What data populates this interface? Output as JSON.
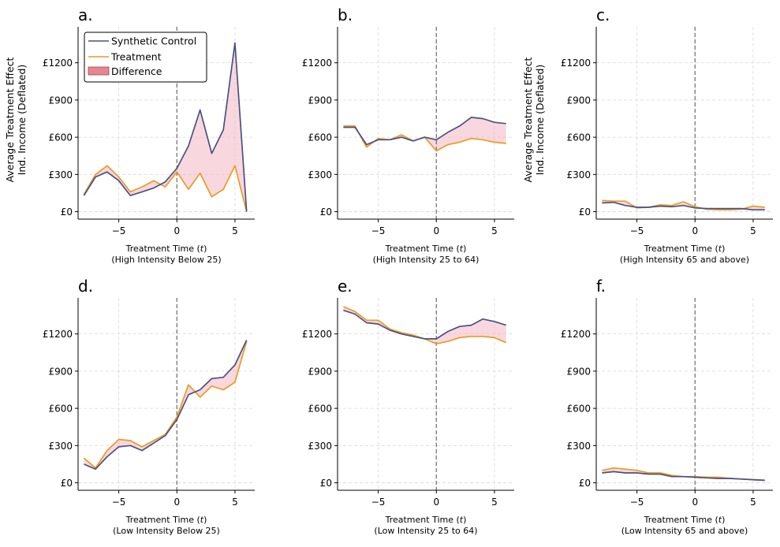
{
  "colors": {
    "synthetic": "#4a5183",
    "treatment": "#e99b26",
    "difference_fill": "#f2b8c2",
    "difference_patch": "#e4878f"
  },
  "legend": {
    "placement": "top-left",
    "entries": [
      "Synthetic Control",
      "Treatment",
      "Difference"
    ]
  },
  "ylabel": [
    "Average Treatment Effect",
    "Ind. Income (Deflated)"
  ],
  "x_tick_labels": [
    "−5",
    "0",
    "5"
  ],
  "y_tick_labels": [
    "£0",
    "£300",
    "£600",
    "£900",
    "£1200"
  ],
  "chart_data": [
    {
      "type": "line",
      "panel": "a.",
      "xlabel": "Treatment Time (t)",
      "subtitle": "(High Intensity Below 25)",
      "x": [
        -8,
        -7,
        -6,
        -5,
        -4,
        -3,
        -2,
        -1,
        0,
        1,
        2,
        3,
        4,
        5,
        6
      ],
      "xlim": [
        -8.5,
        6.7
      ],
      "ylim": [
        -60,
        1490
      ],
      "xticks": [
        -5,
        0,
        5
      ],
      "yticks": [
        0,
        300,
        600,
        900,
        1200
      ],
      "grid": true,
      "treatment_line_x": 0,
      "series": [
        {
          "name": "Synthetic Control",
          "values": [
            130,
            280,
            320,
            250,
            130,
            160,
            190,
            240,
            350,
            530,
            820,
            470,
            660,
            1360,
            0
          ]
        },
        {
          "name": "Treatment",
          "values": [
            140,
            300,
            370,
            280,
            160,
            200,
            250,
            200,
            320,
            180,
            310,
            120,
            180,
            370,
            0
          ]
        }
      ]
    },
    {
      "type": "line",
      "panel": "b.",
      "xlabel": "Treatment Time (t)",
      "subtitle": "(High Intensity 25 to 64)",
      "x": [
        -8,
        -7,
        -6,
        -5,
        -4,
        -3,
        -2,
        -1,
        0,
        1,
        2,
        3,
        4,
        5,
        6
      ],
      "xlim": [
        -8.5,
        6.7
      ],
      "ylim": [
        -60,
        1490
      ],
      "xticks": [
        -5,
        0,
        5
      ],
      "yticks": [
        0,
        300,
        600,
        900,
        1200
      ],
      "grid": true,
      "treatment_line_x": 0,
      "series": [
        {
          "name": "Synthetic Control",
          "values": [
            680,
            680,
            540,
            580,
            580,
            600,
            570,
            600,
            580,
            640,
            690,
            760,
            750,
            720,
            710
          ]
        },
        {
          "name": "Treatment",
          "values": [
            690,
            690,
            520,
            590,
            580,
            620,
            570,
            600,
            490,
            540,
            560,
            590,
            580,
            560,
            550
          ]
        }
      ]
    },
    {
      "type": "line",
      "panel": "c.",
      "xlabel": "Treatment Time (t)",
      "subtitle": "(High Intensity 65 and above)",
      "x": [
        -8,
        -7,
        -6,
        -5,
        -4,
        -3,
        -2,
        -1,
        0,
        1,
        2,
        3,
        4,
        5,
        6
      ],
      "xlim": [
        -8.5,
        6.7
      ],
      "ylim": [
        -60,
        1490
      ],
      "xticks": [
        -5,
        0,
        5
      ],
      "yticks": [
        0,
        300,
        600,
        900,
        1200
      ],
      "grid": true,
      "treatment_line_x": 0,
      "series": [
        {
          "name": "Synthetic Control",
          "values": [
            70,
            75,
            50,
            35,
            35,
            45,
            40,
            50,
            30,
            25,
            25,
            25,
            25,
            15,
            15
          ]
        },
        {
          "name": "Treatment",
          "values": [
            90,
            85,
            85,
            30,
            35,
            55,
            50,
            80,
            40,
            20,
            15,
            15,
            20,
            45,
            35
          ]
        }
      ]
    },
    {
      "type": "line",
      "panel": "d.",
      "xlabel": "Treatment Time (t)",
      "subtitle": "(Low Intensity Below 25)",
      "x": [
        -8,
        -7,
        -6,
        -5,
        -4,
        -3,
        -2,
        -1,
        0,
        1,
        2,
        3,
        4,
        5,
        6
      ],
      "xlim": [
        -8.5,
        6.7
      ],
      "ylim": [
        -60,
        1490
      ],
      "xticks": [
        -5,
        0,
        5
      ],
      "yticks": [
        0,
        300,
        600,
        900,
        1200
      ],
      "grid": true,
      "treatment_line_x": 0,
      "series": [
        {
          "name": "Synthetic Control",
          "values": [
            150,
            110,
            210,
            290,
            300,
            260,
            320,
            380,
            510,
            710,
            750,
            840,
            850,
            950,
            1150
          ]
        },
        {
          "name": "Treatment",
          "values": [
            200,
            120,
            260,
            350,
            340,
            290,
            340,
            390,
            530,
            790,
            690,
            780,
            750,
            810,
            1140
          ]
        }
      ]
    },
    {
      "type": "line",
      "panel": "e.",
      "xlabel": "Treatment Time (t)",
      "subtitle": "(Low Intensity 25 to 64)",
      "x": [
        -8,
        -7,
        -6,
        -5,
        -4,
        -3,
        -2,
        -1,
        0,
        1,
        2,
        3,
        4,
        5,
        6
      ],
      "xlim": [
        -8.5,
        6.7
      ],
      "ylim": [
        -60,
        1490
      ],
      "xticks": [
        -5,
        0,
        5
      ],
      "yticks": [
        0,
        300,
        600,
        900,
        1200
      ],
      "grid": true,
      "treatment_line_x": 0,
      "series": [
        {
          "name": "Synthetic Control",
          "values": [
            1390,
            1360,
            1290,
            1280,
            1230,
            1200,
            1180,
            1160,
            1160,
            1220,
            1260,
            1270,
            1320,
            1300,
            1270
          ]
        },
        {
          "name": "Treatment",
          "values": [
            1420,
            1380,
            1310,
            1310,
            1240,
            1210,
            1190,
            1160,
            1120,
            1140,
            1170,
            1180,
            1180,
            1170,
            1130
          ]
        }
      ]
    },
    {
      "type": "line",
      "panel": "f.",
      "xlabel": "Treatment Time (t)",
      "subtitle": "(Low Intensity 65 and above)",
      "x": [
        -8,
        -7,
        -6,
        -5,
        -4,
        -3,
        -2,
        -1,
        0,
        1,
        2,
        3,
        4,
        5,
        6
      ],
      "xlim": [
        -8.5,
        6.7
      ],
      "ylim": [
        -60,
        1490
      ],
      "xticks": [
        -5,
        0,
        5
      ],
      "yticks": [
        0,
        300,
        600,
        900,
        1200
      ],
      "grid": true,
      "treatment_line_x": 0,
      "series": [
        {
          "name": "Synthetic Control",
          "values": [
            80,
            90,
            80,
            80,
            70,
            70,
            50,
            50,
            45,
            40,
            35,
            35,
            30,
            25,
            20
          ]
        },
        {
          "name": "Treatment",
          "values": [
            100,
            120,
            110,
            100,
            80,
            80,
            60,
            50,
            50,
            45,
            45,
            35,
            30,
            25,
            20
          ]
        }
      ]
    }
  ]
}
